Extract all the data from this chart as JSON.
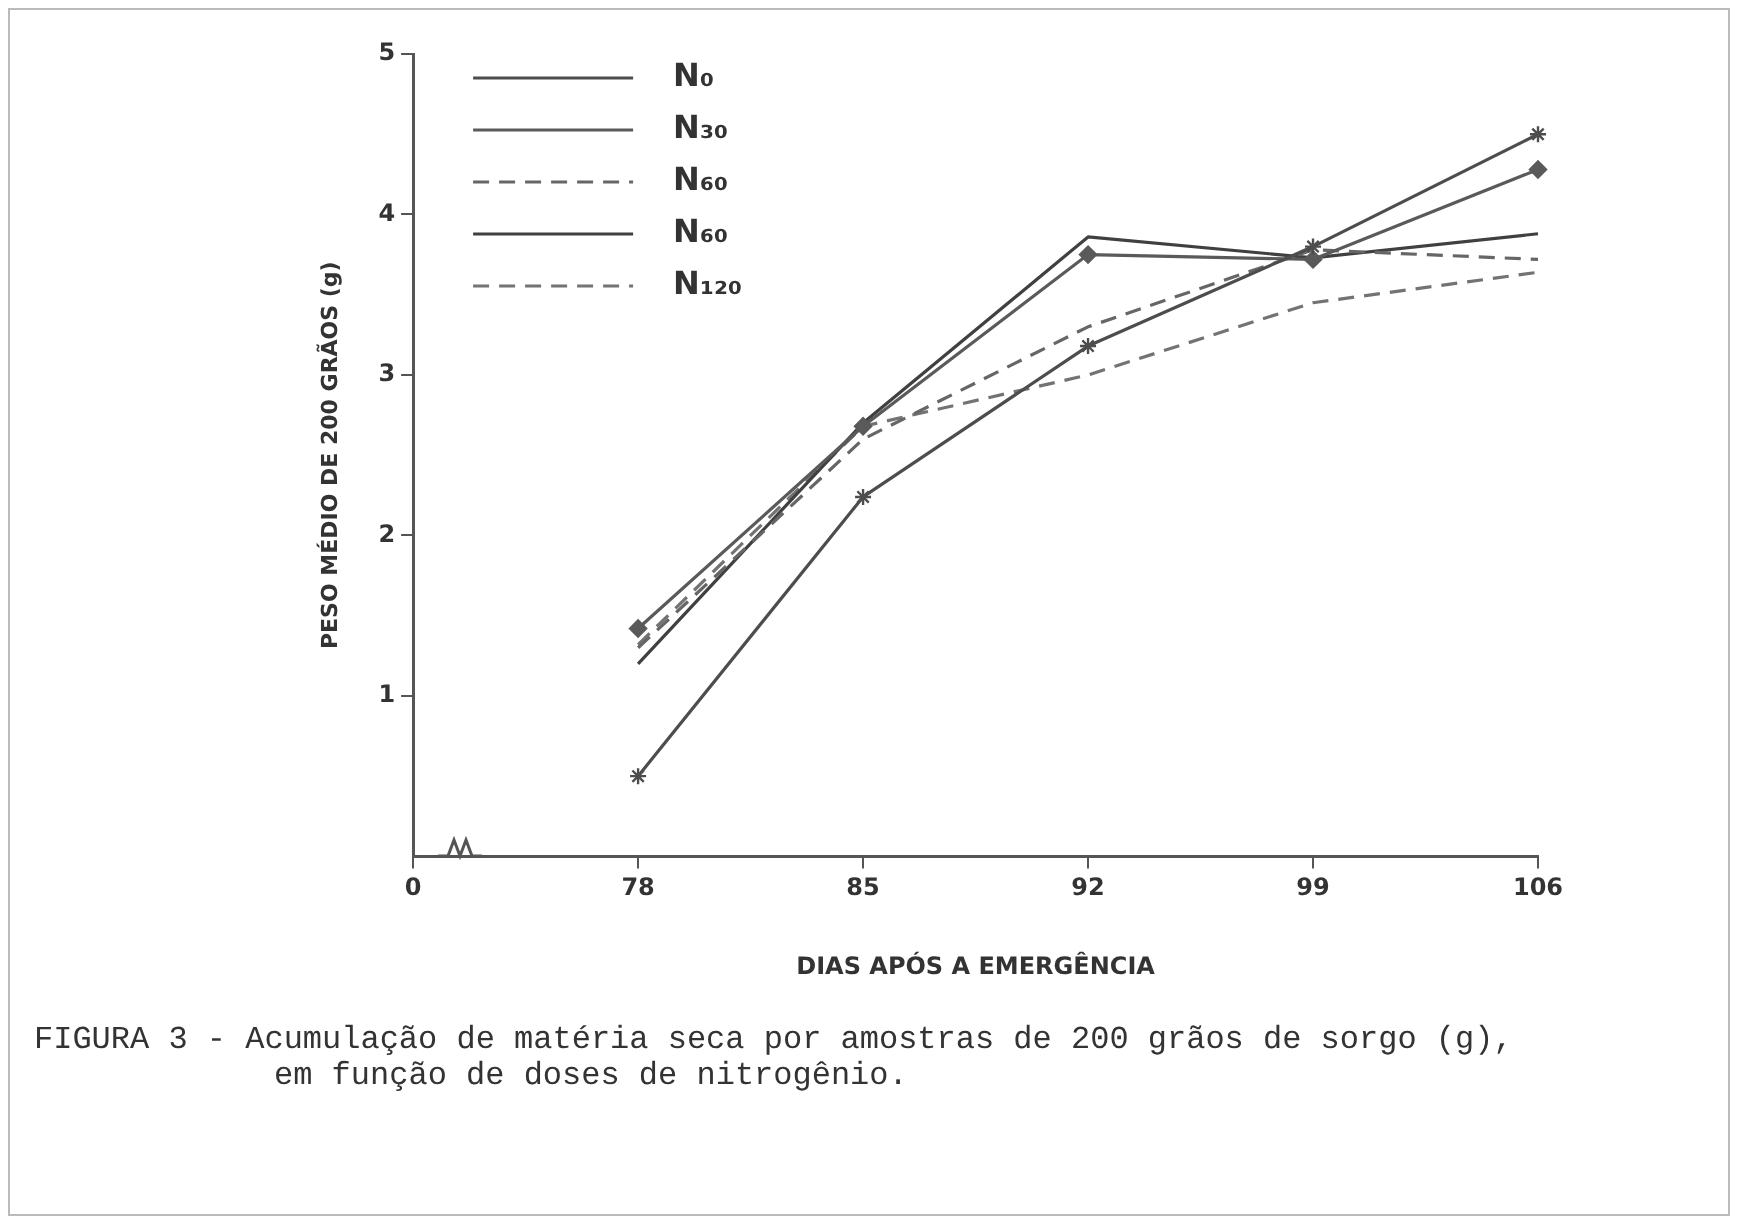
{
  "chart_data": {
    "type": "line",
    "xlabel": "DIAS APÓS A EMERGÊNCIA",
    "ylabel": "PESO MÉDIO DE 200 GRÃOS (g)",
    "categories": [
      "0",
      "78",
      "85",
      "92",
      "99",
      "106"
    ],
    "ylim": [
      0,
      5
    ],
    "yticks": [
      1,
      2,
      3,
      4,
      5
    ],
    "legend": "top left",
    "series": [
      {
        "name": "N₀",
        "color": "#4d4d4d",
        "marker": "cross",
        "line_style": "solid",
        "values": [
          null,
          0.5,
          2.24,
          3.18,
          3.8,
          4.5
        ]
      },
      {
        "name": "N₃₀",
        "color": "#5a5a5a",
        "marker": "diamond",
        "line_style": "solid",
        "values": [
          null,
          1.42,
          2.68,
          3.75,
          3.72,
          4.28
        ]
      },
      {
        "name": "N₆₀",
        "color": "#666666",
        "line_style": "dashed",
        "values": [
          null,
          1.3,
          2.6,
          3.3,
          3.78,
          3.72
        ]
      },
      {
        "name": "N₆₀",
        "color": "#404040",
        "line_style": "solid",
        "values": [
          null,
          1.2,
          2.7,
          3.86,
          3.73,
          3.88
        ]
      },
      {
        "name": "N₁₂₀",
        "color": "#737373",
        "line_style": "dashed",
        "values": [
          null,
          1.32,
          2.68,
          3.0,
          3.45,
          3.64
        ]
      }
    ],
    "annotations": [
      "FIGURA 3 - Acumulação de matéria seca por amostras de 200 grãos de sorgo (g), em função de doses de nitrogênio."
    ]
  }
}
